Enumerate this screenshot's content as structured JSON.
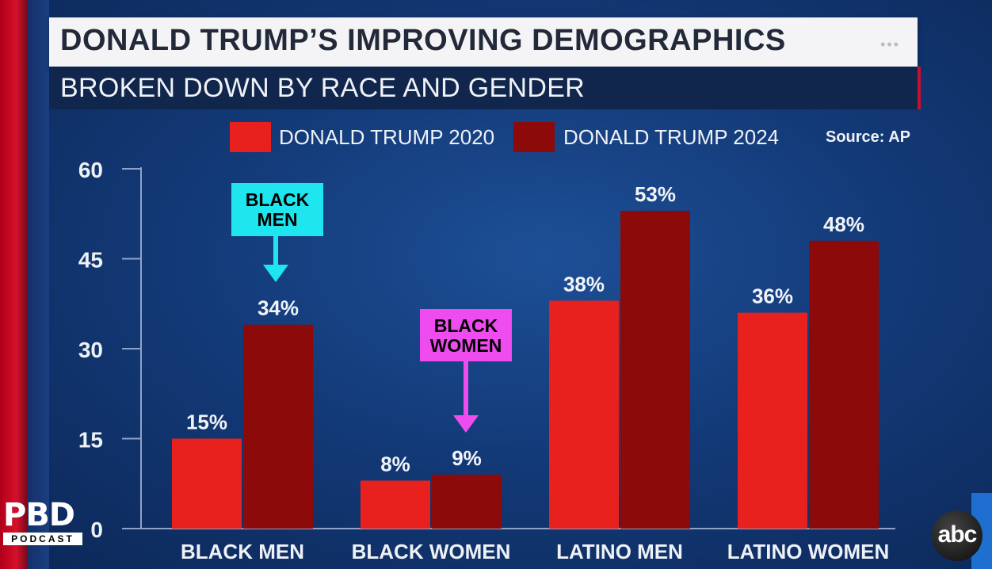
{
  "header": {
    "title": "DONALD TRUMP’S IMPROVING DEMOGRAPHICS",
    "dots": "•••",
    "subtitle": "BROKEN DOWN BY RACE AND GENDER"
  },
  "source": "Source: AP",
  "colors": {
    "trump_2020": "#e8211f",
    "trump_2024": "#8c0a0a",
    "axis": "#8fa3c8",
    "callout_black_men": "#1fe6ee",
    "callout_black_women": "#ee4cee"
  },
  "chart_data": {
    "type": "bar",
    "categories": [
      "BLACK MEN",
      "BLACK WOMEN",
      "LATINO MEN",
      "LATINO WOMEN"
    ],
    "series": [
      {
        "name": "DONALD TRUMP 2020",
        "values": [
          15,
          8,
          38,
          36
        ],
        "labels": [
          "15%",
          "8%",
          "38%",
          "36%"
        ]
      },
      {
        "name": "DONALD TRUMP 2024",
        "values": [
          34,
          9,
          53,
          48
        ],
        "labels": [
          "34%",
          "9%",
          "53%",
          "48%"
        ]
      }
    ],
    "yticks": [
      0,
      15,
      30,
      45,
      60
    ],
    "ylim": [
      0,
      60
    ],
    "legend_position": "top"
  },
  "callouts": [
    {
      "line1": "BLACK",
      "line2": "MEN",
      "category_index": 0,
      "series_index": 1
    },
    {
      "line1": "BLACK",
      "line2": "WOMEN",
      "category_index": 1,
      "series_index": 1
    }
  ],
  "branding": {
    "pbd": "PBD",
    "podcast": "PODCAST",
    "network": "abc"
  }
}
